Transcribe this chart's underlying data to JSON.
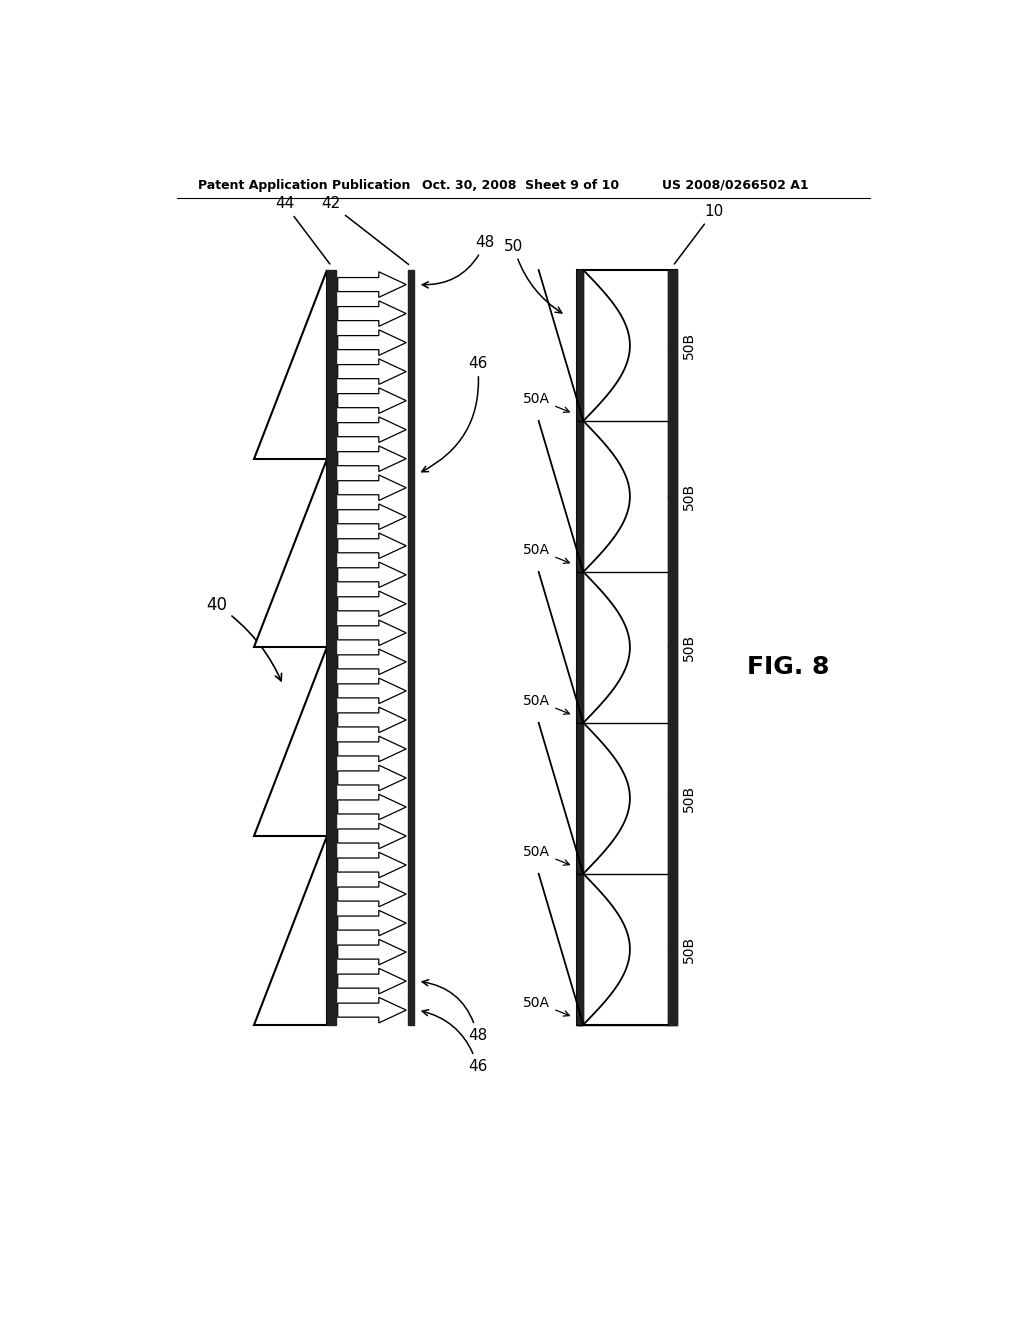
{
  "title_left": "Patent Application Publication",
  "title_mid": "Oct. 30, 2008  Sheet 9 of 10",
  "title_right": "US 2008/0266502 A1",
  "fig_label": "FIG. 8",
  "background": "#ffffff",
  "line_color": "#000000"
}
